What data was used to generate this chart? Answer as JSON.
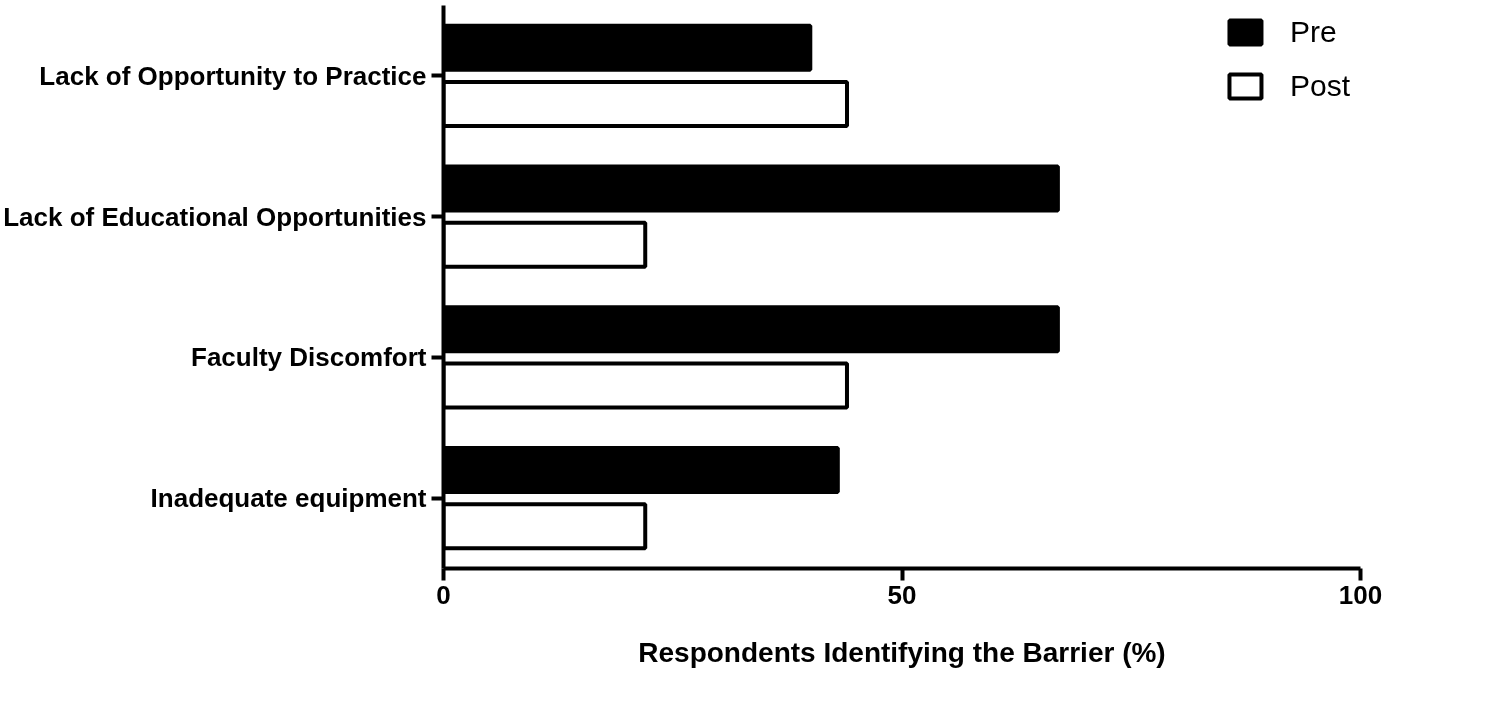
{
  "chart_data": {
    "type": "bar",
    "orientation": "horizontal",
    "categories": [
      "Lack of Opportunity to Practice",
      "Lack of Educational Opportunities",
      "Faculty Discomfort",
      "Inadequate equipment"
    ],
    "series": [
      {
        "name": "Pre",
        "color": "#000000",
        "values": [
          40,
          67,
          67,
          43
        ]
      },
      {
        "name": "Post",
        "color": "#ffffff",
        "values": [
          44,
          22,
          44,
          22
        ]
      }
    ],
    "xlabel": "Respondents Identifying the Barrier (%)",
    "xlim": [
      0,
      100
    ],
    "xticks": [
      0,
      50,
      100
    ],
    "grid": false,
    "legend": "top right"
  }
}
